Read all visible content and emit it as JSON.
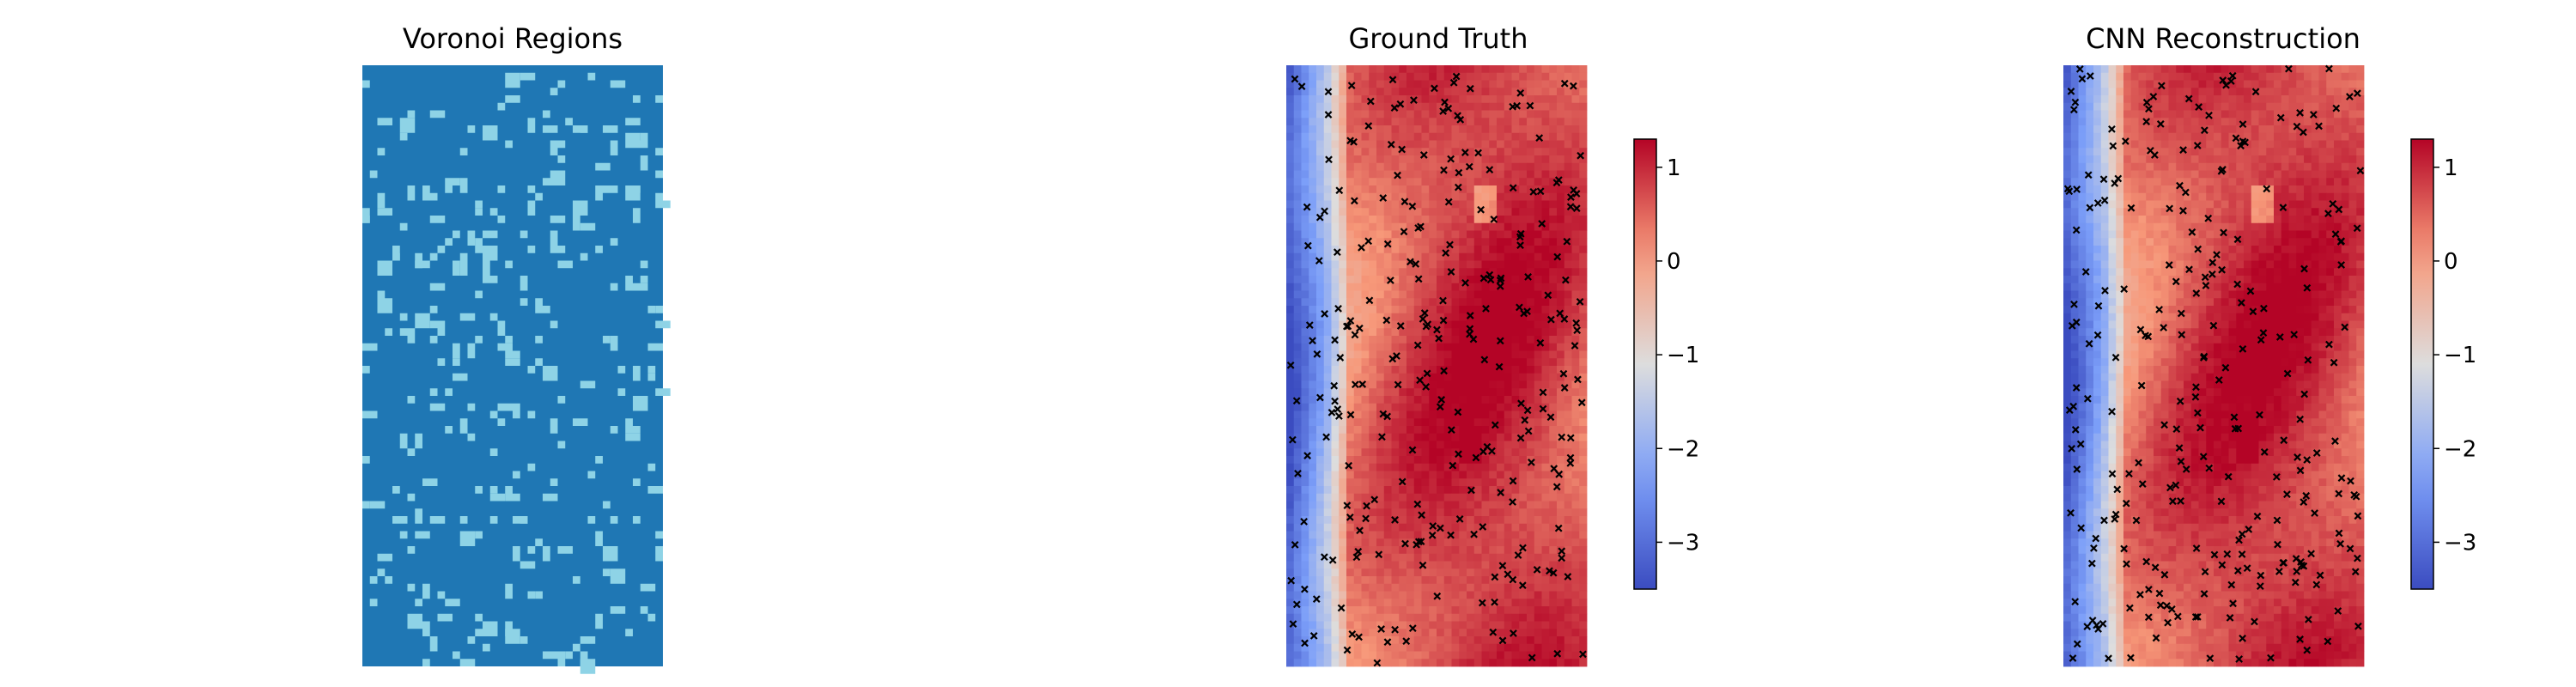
{
  "chart_data": [
    {
      "type": "heatmap",
      "title": "Voronoi Regions",
      "grid": false,
      "axes": "off",
      "grid_size": [
        40,
        80
      ],
      "colormap": "tab10-like (two classes)",
      "colors": {
        "background": "#1f77b4",
        "sensor_cell": "#8ed3e6"
      }
    },
    {
      "type": "heatmap",
      "title": "Ground Truth",
      "grid": false,
      "axes": "off",
      "colormap": "coolwarm",
      "vmin": -3.5,
      "vmax": 1.3,
      "colorbar": {
        "ticks": [
          1,
          0,
          -1,
          -2,
          -3
        ],
        "tick_labels": [
          "1",
          "0",
          "−1",
          "−2",
          "−3"
        ]
      },
      "markers": {
        "symbol": "x",
        "color": "#000000"
      }
    },
    {
      "type": "heatmap",
      "title": "CNN Reconstruction",
      "grid": false,
      "axes": "off",
      "colormap": "coolwarm",
      "vmin": -3.5,
      "vmax": 1.3,
      "colorbar": {
        "ticks": [
          1,
          0,
          -1,
          -2,
          -3
        ],
        "tick_labels": [
          "1",
          "0",
          "−1",
          "−2",
          "−3"
        ]
      },
      "markers": {
        "symbol": "x",
        "color": "#000000"
      }
    }
  ]
}
